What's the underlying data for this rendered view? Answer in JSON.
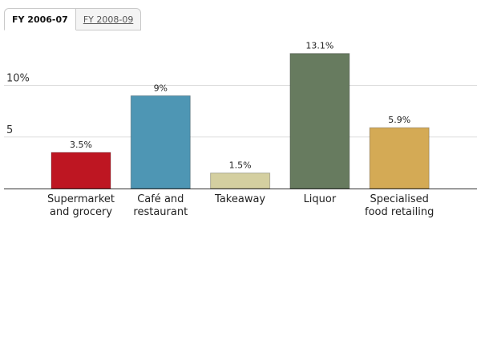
{
  "tabs": [
    {
      "label": "FY 2006-07",
      "active": true
    },
    {
      "label": "FY 2008-09",
      "active": false
    }
  ],
  "chart_data": {
    "type": "bar",
    "title": "",
    "xlabel": "",
    "ylabel": "",
    "categories": [
      [
        "Supermarket",
        "and grocery"
      ],
      [
        "Café and",
        "restaurant"
      ],
      [
        "Takeaway"
      ],
      [
        "Liquor"
      ],
      [
        "Specialised",
        "food retailing"
      ]
    ],
    "values": [
      3.5,
      9,
      1.5,
      13.1,
      5.9
    ],
    "value_labels": [
      "3.5%",
      "9%",
      "1.5%",
      "13.1%",
      "5.9%"
    ],
    "colors": [
      "#be1622",
      "#4e96b4",
      "#d4cfa0",
      "#677b5f",
      "#d4aa55"
    ],
    "yticks": [
      {
        "value": 5,
        "label": "5"
      },
      {
        "value": 10,
        "label": "10%"
      }
    ],
    "ylim": [
      0,
      14.5
    ],
    "grid": true
  }
}
